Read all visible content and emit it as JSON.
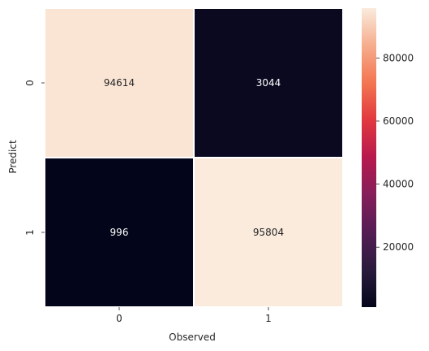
{
  "chart_data": {
    "type": "heatmap",
    "x_categories": [
      "0",
      "1"
    ],
    "y_categories": [
      "0",
      "1"
    ],
    "values": [
      [
        94614,
        3044
      ],
      [
        996,
        95804
      ]
    ],
    "value_labels": [
      [
        "94614",
        "3044"
      ],
      [
        "996",
        "95804"
      ]
    ],
    "xlabel": "Observed",
    "ylabel": "Predict",
    "colorbar": {
      "min": 996,
      "max": 95804,
      "ticks": [
        20000,
        40000,
        60000,
        80000
      ],
      "tick_labels": [
        "20000",
        "40000",
        "60000",
        "80000"
      ],
      "colormap": "rocket"
    },
    "grid": false,
    "legend": "colorbar-right"
  }
}
